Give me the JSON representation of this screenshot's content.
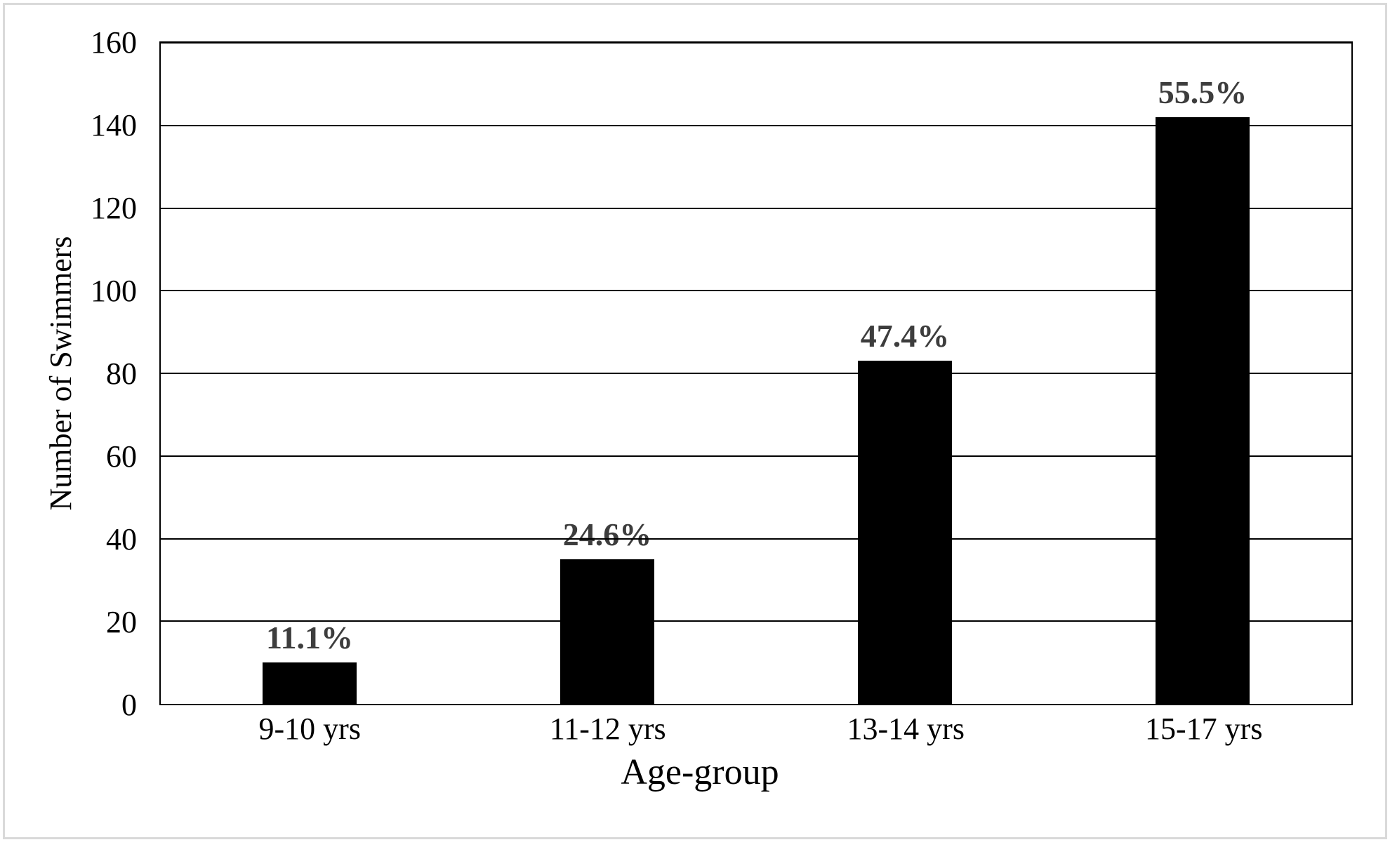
{
  "chart_data": {
    "type": "bar",
    "title": "",
    "categories": [
      "9-10 yrs",
      "11-12 yrs",
      "13-14 yrs",
      "15-17 yrs"
    ],
    "values": [
      10,
      35,
      83,
      142
    ],
    "bar_labels": [
      "11.1%",
      "24.6%",
      "47.4%",
      "55.5%"
    ],
    "xlabel": "Age-group",
    "ylabel": "Number of Swimmers",
    "ylim": [
      0,
      160
    ],
    "yticks": [
      0,
      20,
      40,
      60,
      80,
      100,
      120,
      140,
      160
    ],
    "grid": "horizontal",
    "legend_position": "none",
    "colors": {
      "bar": "#000000",
      "bar_label": "#3d3d3d",
      "axis_and_grid": "#000000",
      "frame_border": "#d9d9d9",
      "background": "#ffffff"
    }
  }
}
